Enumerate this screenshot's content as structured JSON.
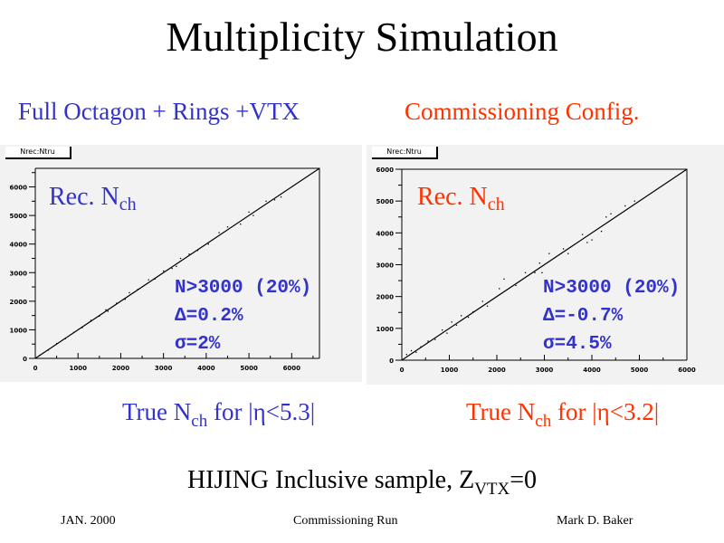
{
  "title": "Multiplicity Simulation",
  "left": {
    "heading": "Full Octagon + Rings +VTX",
    "hist_label": "Nrec:Ntru",
    "yaxis_title": {
      "main": "Rec. N",
      "sub": "ch"
    },
    "stats": [
      "N>3000 (20%)",
      "Δ=0.2%",
      "σ=2%"
    ],
    "xaxis_title": {
      "pre": "True N",
      "sub": "ch",
      "post": " for |η<5.3|"
    }
  },
  "right": {
    "heading": "Commissioning Config.",
    "hist_label": "Nrec:Ntru",
    "yaxis_title": {
      "main": "Rec. N",
      "sub": "ch"
    },
    "stats": [
      "N>3000 (20%)",
      "Δ=-0.7%",
      "σ=4.5%"
    ],
    "xaxis_title": {
      "pre": "True N",
      "sub": "ch",
      "post": " for |η<3.2|"
    }
  },
  "caption": {
    "pre": "HIJING Inclusive sample, Z",
    "sub": "VTX",
    "post": "=0"
  },
  "footer": {
    "left": "JAN. 2000",
    "center": "Commissioning Run",
    "right": "Mark D. Baker"
  },
  "colors": {
    "blue": "#3333cc",
    "red": "#ff3300",
    "panel": "#f2f2f2"
  },
  "chart_data": [
    {
      "type": "scatter",
      "title": "Nrec:Ntru",
      "xlabel": "True Nch for |η<5.3|",
      "ylabel": "Rec. Nch",
      "xlim": [
        0,
        6650
      ],
      "ylim": [
        0,
        6650
      ],
      "xticks": [
        0,
        1000,
        2000,
        3000,
        4000,
        5000,
        6000
      ],
      "yticks": [
        0,
        1000,
        2000,
        3000,
        4000,
        5000,
        6000
      ],
      "line": [
        [
          0,
          0
        ],
        [
          6650,
          6650
        ]
      ],
      "points": [
        [
          100,
          110
        ],
        [
          300,
          290
        ],
        [
          500,
          520
        ],
        [
          700,
          690
        ],
        [
          900,
          910
        ],
        [
          1100,
          1080
        ],
        [
          1300,
          1330
        ],
        [
          1500,
          1480
        ],
        [
          1650,
          1700
        ],
        [
          1700,
          1650
        ],
        [
          1900,
          1930
        ],
        [
          2100,
          2070
        ],
        [
          2200,
          2300
        ],
        [
          2400,
          2420
        ],
        [
          2650,
          2750
        ],
        [
          2800,
          2780
        ],
        [
          3000,
          3060
        ],
        [
          3200,
          3150
        ],
        [
          3300,
          3220
        ],
        [
          3400,
          3500
        ],
        [
          3600,
          3650
        ],
        [
          3800,
          3780
        ],
        [
          4050,
          4000
        ],
        [
          4300,
          4400
        ],
        [
          4500,
          4600
        ],
        [
          4800,
          4700
        ],
        [
          5000,
          5120
        ],
        [
          5100,
          5000
        ],
        [
          5400,
          5500
        ],
        [
          5600,
          5550
        ],
        [
          5750,
          5650
        ]
      ]
    },
    {
      "type": "scatter",
      "title": "Nrec:Ntru",
      "xlabel": "True Nch for |η<3.2|",
      "ylabel": "Rec. Nch",
      "xlim": [
        0,
        6000
      ],
      "ylim": [
        0,
        6000
      ],
      "xticks": [
        0,
        1000,
        2000,
        3000,
        4000,
        5000,
        6000
      ],
      "yticks": [
        0,
        1000,
        2000,
        3000,
        4000,
        5000,
        6000
      ],
      "line": [
        [
          0,
          0
        ],
        [
          6000,
          6000
        ]
      ],
      "points": [
        [
          100,
          180
        ],
        [
          200,
          300
        ],
        [
          300,
          250
        ],
        [
          400,
          420
        ],
        [
          550,
          600
        ],
        [
          700,
          650
        ],
        [
          850,
          950
        ],
        [
          950,
          850
        ],
        [
          1050,
          1200
        ],
        [
          1150,
          1100
        ],
        [
          1250,
          1400
        ],
        [
          1400,
          1350
        ],
        [
          1500,
          1520
        ],
        [
          1700,
          1850
        ],
        [
          1800,
          1700
        ],
        [
          2050,
          2250
        ],
        [
          2150,
          2550
        ],
        [
          2400,
          2350
        ],
        [
          2600,
          2750
        ],
        [
          2800,
          2750
        ],
        [
          2900,
          3050
        ],
        [
          2950,
          2750
        ],
        [
          3100,
          3350
        ],
        [
          3400,
          3500
        ],
        [
          3500,
          3350
        ],
        [
          3800,
          3950
        ],
        [
          3900,
          3700
        ],
        [
          4000,
          3780
        ],
        [
          4200,
          4050
        ],
        [
          4300,
          4500
        ],
        [
          4400,
          4600
        ],
        [
          4700,
          4850
        ],
        [
          4900,
          5000
        ]
      ]
    }
  ]
}
